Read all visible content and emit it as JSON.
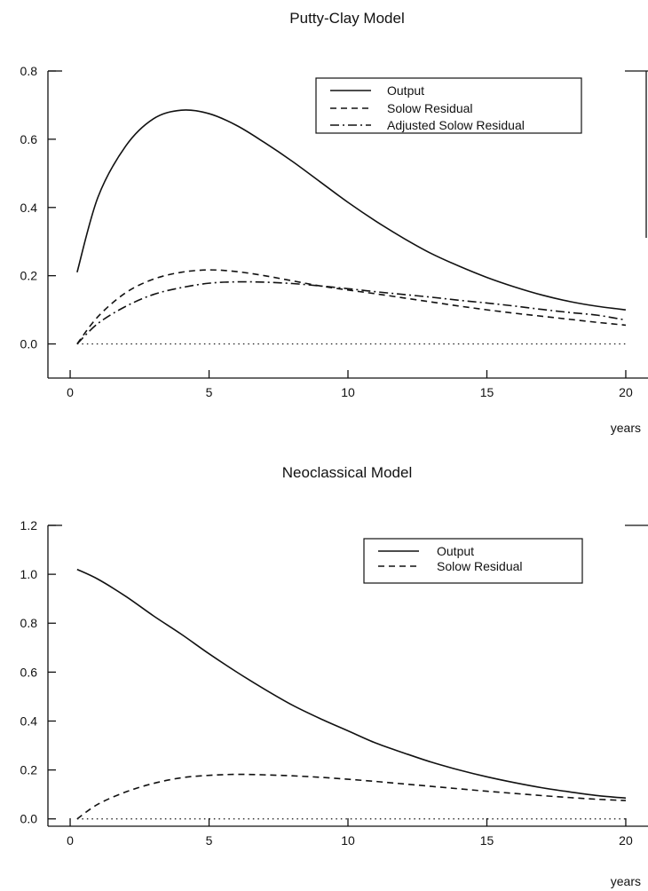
{
  "chart_data": [
    {
      "type": "line",
      "title": "Putty-Clay Model",
      "xlabel": "years",
      "ylabel": "",
      "xlim": [
        -0.8,
        20.8
      ],
      "ylim": [
        -0.1,
        0.8
      ],
      "x_ticks": [
        0,
        5,
        10,
        15,
        20
      ],
      "y_ticks": [
        0.0,
        0.2,
        0.4,
        0.6,
        0.8
      ],
      "x_tick_labels": [
        "0",
        "5",
        "10",
        "15",
        "20"
      ],
      "y_tick_labels": [
        "0.0",
        "0.2",
        "0.4",
        "0.6",
        "0.8"
      ],
      "grid": false,
      "legend_position": "top-right",
      "zero_line": true,
      "x": [
        0.25,
        1,
        2,
        3,
        4,
        5,
        6,
        7,
        8,
        9,
        10,
        11,
        12,
        13,
        14,
        15,
        16,
        17,
        18,
        19,
        20
      ],
      "series": [
        {
          "name": "Output",
          "style": "solid",
          "values": [
            0.21,
            0.43,
            0.58,
            0.66,
            0.685,
            0.675,
            0.64,
            0.59,
            0.535,
            0.475,
            0.415,
            0.36,
            0.31,
            0.265,
            0.228,
            0.195,
            0.167,
            0.143,
            0.124,
            0.11,
            0.1
          ]
        },
        {
          "name": "Solow Residual",
          "style": "dashed",
          "values": [
            0.0,
            0.08,
            0.15,
            0.19,
            0.21,
            0.217,
            0.212,
            0.2,
            0.185,
            0.17,
            0.158,
            0.147,
            0.135,
            0.123,
            0.111,
            0.1,
            0.09,
            0.081,
            0.072,
            0.063,
            0.055
          ]
        },
        {
          "name": "Adjusted Solow Residual",
          "style": "dashdot",
          "values": [
            0.0,
            0.06,
            0.11,
            0.145,
            0.165,
            0.178,
            0.182,
            0.181,
            0.177,
            0.17,
            0.162,
            0.153,
            0.145,
            0.137,
            0.128,
            0.12,
            0.111,
            0.101,
            0.092,
            0.084,
            0.07
          ]
        }
      ]
    },
    {
      "type": "line",
      "title": "Neoclassical Model",
      "xlabel": "years",
      "ylabel": "",
      "xlim": [
        -0.8,
        20.8
      ],
      "ylim": [
        -0.03,
        1.2
      ],
      "x_ticks": [
        0,
        5,
        10,
        15,
        20
      ],
      "y_ticks": [
        0.0,
        0.2,
        0.4,
        0.6,
        0.8,
        1.0,
        1.2
      ],
      "x_tick_labels": [
        "0",
        "5",
        "10",
        "15",
        "20"
      ],
      "y_tick_labels": [
        "0.0",
        "0.2",
        "0.4",
        "0.6",
        "0.8",
        "1.0",
        "1.2"
      ],
      "grid": false,
      "legend_position": "top-right",
      "zero_line": true,
      "x": [
        0.25,
        1,
        2,
        3,
        4,
        5,
        6,
        7,
        8,
        9,
        10,
        11,
        12,
        13,
        14,
        15,
        16,
        17,
        18,
        19,
        20
      ],
      "series": [
        {
          "name": "Output",
          "style": "solid",
          "values": [
            1.02,
            0.98,
            0.91,
            0.83,
            0.755,
            0.675,
            0.6,
            0.53,
            0.465,
            0.41,
            0.36,
            0.31,
            0.27,
            0.232,
            0.2,
            0.172,
            0.148,
            0.127,
            0.11,
            0.095,
            0.085
          ]
        },
        {
          "name": "Solow Residual",
          "style": "dashed",
          "values": [
            0.0,
            0.06,
            0.11,
            0.145,
            0.168,
            0.178,
            0.182,
            0.18,
            0.176,
            0.17,
            0.162,
            0.153,
            0.143,
            0.133,
            0.123,
            0.113,
            0.104,
            0.095,
            0.087,
            0.08,
            0.075
          ]
        }
      ]
    }
  ]
}
